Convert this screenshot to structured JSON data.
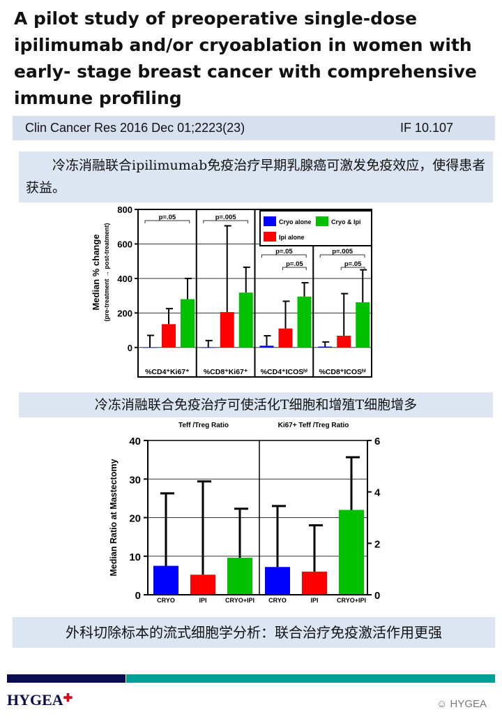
{
  "title": "A pilot study of preoperative single-dose ipilimumab and/or cryoablation in women with early- stage breast cancer with comprehensive immune profiling",
  "journal": "Clin Cancer Res 2016 Dec 01;2223(23)",
  "impact_factor": "IF 10.107",
  "caption1": "冷冻消融联合ipilimumab免疫治疗早期乳腺癌可激发免疫效应，使得患者获益。",
  "caption2": "冷冻消融联合免疫治疗可使活化T细胞和增殖T细胞增多",
  "caption3": "外科切除标本的流式细胞学分析：联合治疗免疫激活作用更强",
  "footer": {
    "logo": "HYGEA",
    "watermark": "HYGEA",
    "navy": "#0b0b4e",
    "teal": "#00a096"
  },
  "colors": {
    "Cryo alone": "#0000ff",
    "Ipi alone": "#ff0000",
    "Cryo & Ipi": "#00c000"
  },
  "chart_data": [
    {
      "type": "bar",
      "ylabel": "Median % change",
      "ylabel2": "(pre-treatment → post-treatment)",
      "ylim": [
        -90,
        800
      ],
      "yticks": [
        0,
        200,
        400,
        600,
        800
      ],
      "grid": true,
      "legend": "top-right",
      "categories": [
        "%CD4⁺Ki67⁺",
        "%CD8⁺Ki67⁺",
        "%CD4⁺ICOSʰⁱ",
        "%CD8⁺ICOSʰⁱ"
      ],
      "series": [
        {
          "name": "Cryo alone",
          "values": [
            0,
            0,
            10,
            5
          ],
          "error_upper": [
            70,
            40,
            68,
            32
          ]
        },
        {
          "name": "Ipi alone",
          "values": [
            135,
            205,
            110,
            68
          ],
          "error_upper": [
            225,
            705,
            268,
            312
          ]
        },
        {
          "name": "Cryo & Ipi",
          "values": [
            280,
            318,
            295,
            262
          ],
          "error_upper": [
            400,
            465,
            375,
            450
          ]
        }
      ],
      "annotations": [
        [
          "p=.05"
        ],
        [
          "p=.005"
        ],
        [
          "p=.05",
          "p=.05"
        ],
        [
          "p=.005",
          "p=.05"
        ]
      ]
    },
    {
      "type": "bar",
      "ylabel": "Median Ratio at Mastectomy",
      "ylim": [
        0,
        40
      ],
      "yticks": [
        0,
        10,
        20,
        30,
        40
      ],
      "y2lim": [
        0,
        6
      ],
      "y2ticks": [
        0,
        2,
        4,
        6
      ],
      "grid": true,
      "panels": [
        {
          "title": "Teff /Treg Ratio",
          "categories": [
            "CRYO",
            "IPI",
            "CRYO+IPI"
          ],
          "values": [
            7.5,
            5.2,
            9.6
          ],
          "error_upper": [
            26.3,
            29.4,
            22.3
          ],
          "axis": "left"
        },
        {
          "title": "Ki67+ Teff /Treg Ratio",
          "categories": [
            "CRYO",
            "IPI",
            "CRYO+IPI"
          ],
          "values": [
            1.08,
            0.9,
            3.3
          ],
          "error_upper": [
            3.45,
            2.7,
            5.35
          ],
          "axis": "right"
        }
      ]
    }
  ]
}
